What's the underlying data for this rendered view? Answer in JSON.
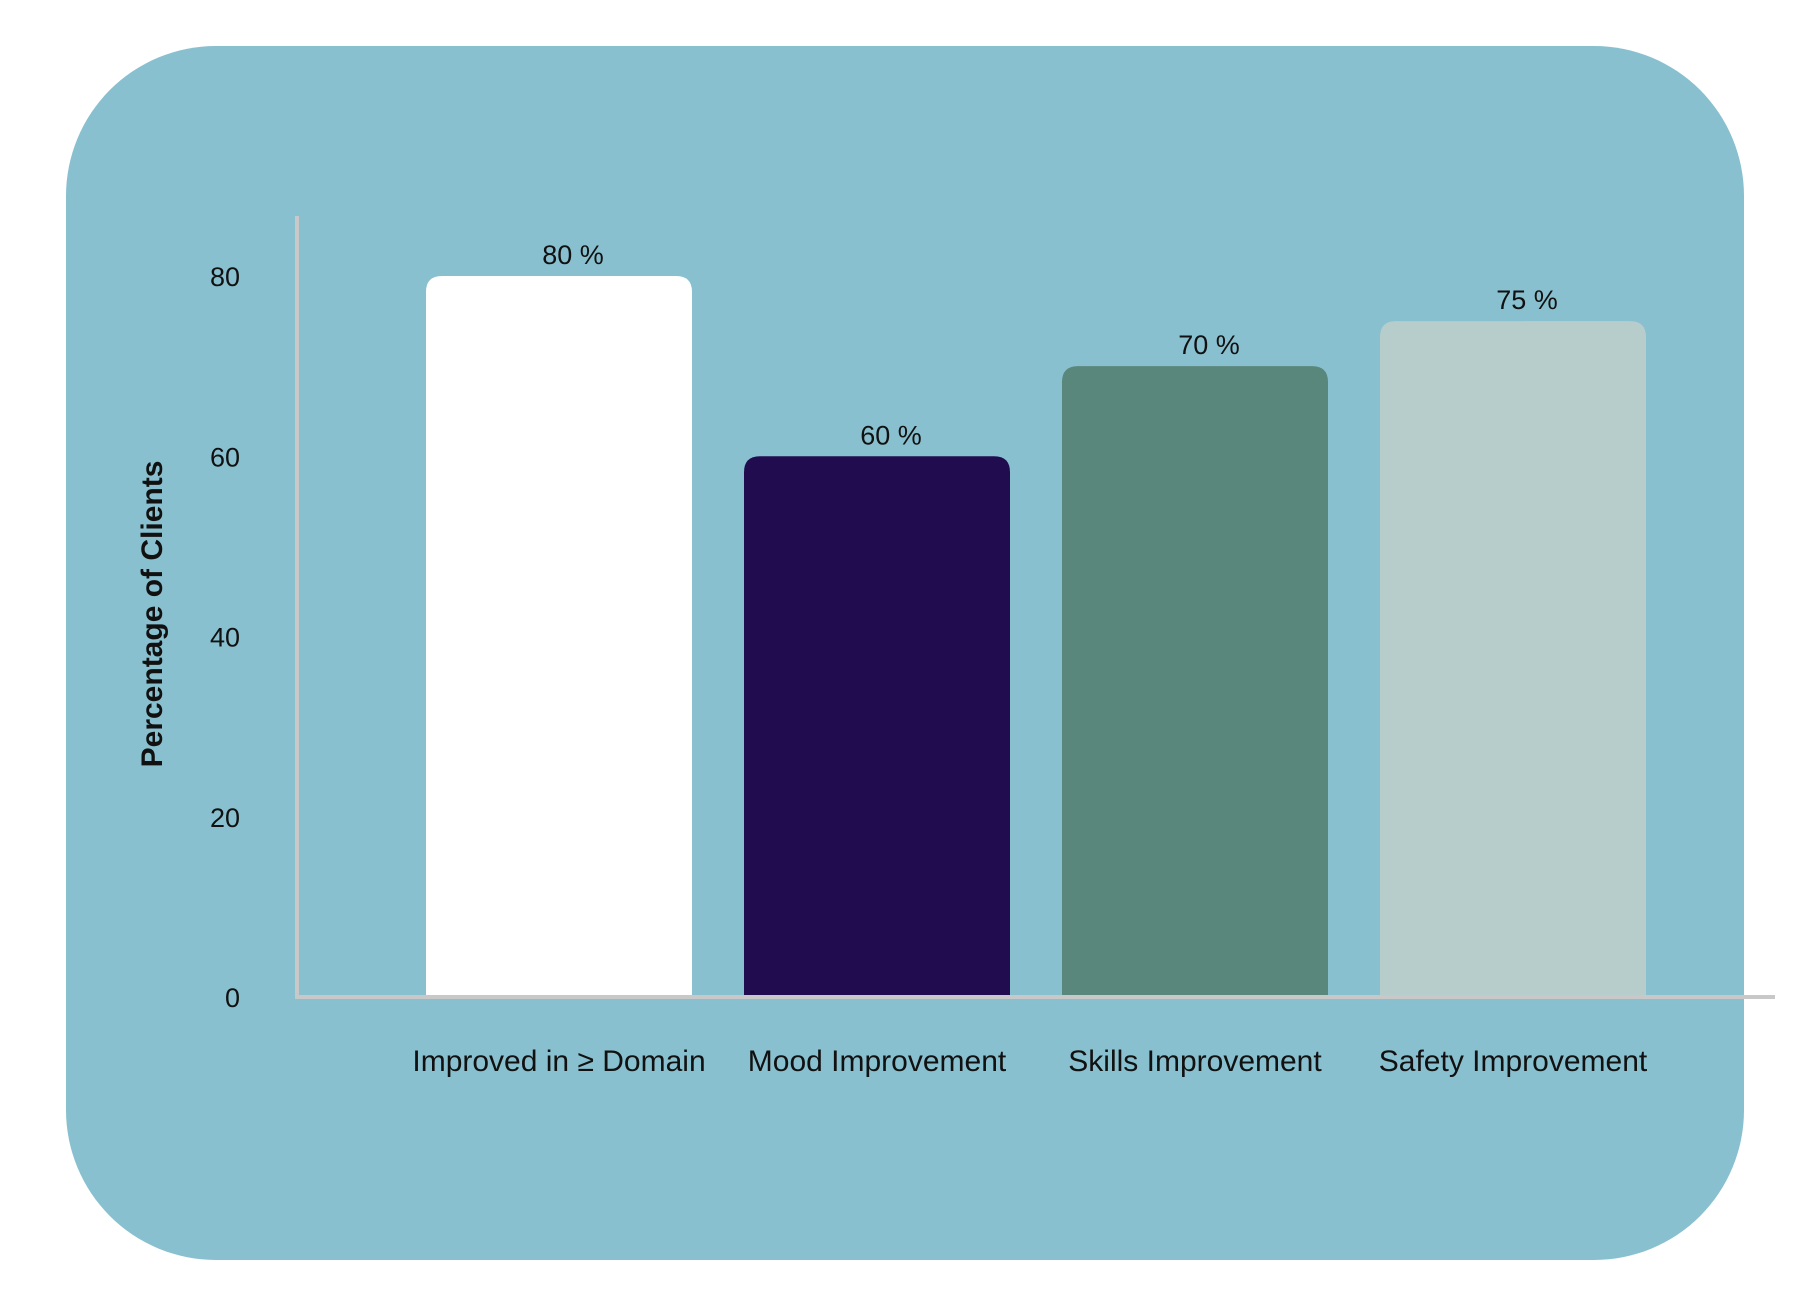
{
  "chart_data": {
    "type": "bar",
    "title": "",
    "xlabel": "",
    "ylabel": "Percentage of Clients",
    "categories": [
      "Improved in ≥ Domain",
      "Mood Improvement",
      "Skills Improvement",
      "Safety Improvement"
    ],
    "values": [
      80,
      60,
      70,
      75
    ],
    "value_labels": [
      "80 %",
      "60 %",
      "70 %",
      "75 %"
    ],
    "bar_colors": [
      "#ffffff",
      "#220c50",
      "#5a877c",
      "#b7cdcb"
    ],
    "ylim": [
      0,
      80
    ],
    "yticks": [
      0,
      20,
      40,
      60,
      80
    ],
    "grid": false,
    "legend": "none"
  },
  "colors": {
    "card_background": "#88c0cf",
    "axis": "#c8c8c8",
    "text": "#111111"
  }
}
